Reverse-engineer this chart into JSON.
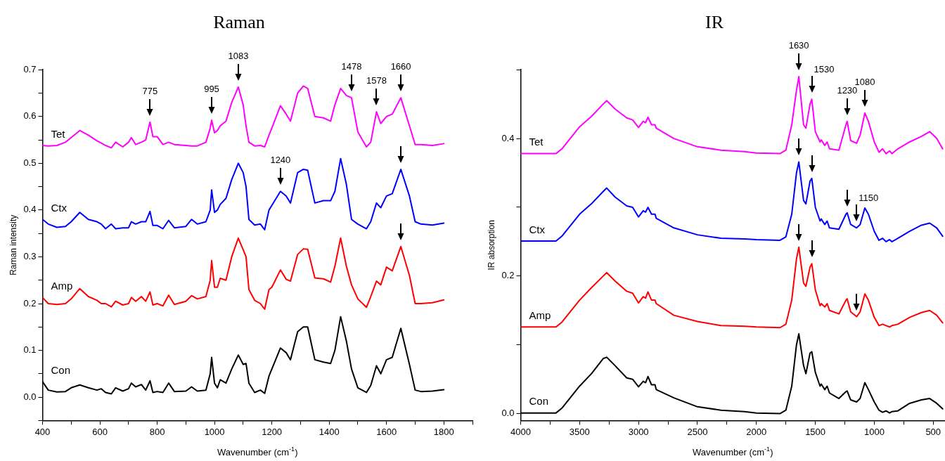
{
  "chart_data": [
    {
      "type": "line",
      "title": "Raman",
      "xlabel": "Wavenumber (cm$^{-1}$)",
      "ylabel": "Raman intensity",
      "xlim": [
        400,
        1900
      ],
      "ylim": [
        -0.05,
        0.7
      ],
      "xticks": [
        400,
        {
          "value": 500,
          "label": null
        },
        600,
        {
          "value": 700,
          "label": null
        },
        800,
        {
          "value": 900,
          "label": null
        },
        1000,
        {
          "value": 1100,
          "label": null
        },
        1200,
        {
          "value": 1300,
          "label": null
        },
        1400,
        {
          "value": 1500,
          "label": null
        },
        1600,
        {
          "value": 1700,
          "label": null
        },
        1800,
        {
          "value": 1900,
          "label": null
        }
      ],
      "yticks": [
        {
          "value": -0.05,
          "label": null
        },
        {
          "value": 0,
          "label": "0.0"
        },
        {
          "value": 0.05,
          "label": null
        },
        0.1,
        {
          "value": 0.15,
          "label": null
        },
        0.2,
        {
          "value": 0.25,
          "label": null
        },
        0.3,
        {
          "value": 0.35,
          "label": null
        },
        0.4,
        {
          "value": 0.45,
          "label": null
        },
        0.5,
        {
          "value": 0.55,
          "label": null
        },
        0.6,
        {
          "value": 0.65,
          "label": null
        },
        0.7
      ],
      "marker": "none",
      "line_style": "solid",
      "x": [
        400,
        420,
        450,
        480,
        500,
        530,
        560,
        590,
        605,
        620,
        640,
        655,
        680,
        700,
        710,
        725,
        745,
        760,
        775,
        785,
        800,
        820,
        840,
        860,
        900,
        920,
        940,
        970,
        985,
        990,
        1000,
        1010,
        1020,
        1040,
        1060,
        1083,
        1100,
        1110,
        1120,
        1140,
        1160,
        1175,
        1190,
        1200,
        1230,
        1250,
        1265,
        1290,
        1310,
        1325,
        1350,
        1380,
        1405,
        1420,
        1440,
        1460,
        1478,
        1500,
        1530,
        1545,
        1565,
        1580,
        1600,
        1620,
        1650,
        1680,
        1700,
        1720,
        1760,
        1800
      ],
      "series": [
        {
          "name": "Tet",
          "color": "#ff00ff",
          "values": [
            0.538,
            0.537,
            0.538,
            0.545,
            0.555,
            0.57,
            0.56,
            0.548,
            0.543,
            0.538,
            0.533,
            0.545,
            0.535,
            0.545,
            0.555,
            0.54,
            0.545,
            0.55,
            0.588,
            0.557,
            0.557,
            0.54,
            0.545,
            0.54,
            0.538,
            0.537,
            0.537,
            0.545,
            0.575,
            0.592,
            0.565,
            0.57,
            0.58,
            0.59,
            0.63,
            0.663,
            0.625,
            0.58,
            0.545,
            0.537,
            0.538,
            0.535,
            0.56,
            0.575,
            0.623,
            0.605,
            0.59,
            0.65,
            0.665,
            0.66,
            0.6,
            0.597,
            0.59,
            0.625,
            0.66,
            0.645,
            0.64,
            0.567,
            0.535,
            0.545,
            0.61,
            0.585,
            0.6,
            0.605,
            0.64,
            0.58,
            0.54,
            0.54,
            0.538,
            0.542
          ]
        },
        {
          "name": "Ctx",
          "color": "#0000ff",
          "values": [
            0.38,
            0.37,
            0.363,
            0.365,
            0.375,
            0.395,
            0.38,
            0.375,
            0.37,
            0.36,
            0.37,
            0.36,
            0.362,
            0.362,
            0.375,
            0.37,
            0.375,
            0.375,
            0.397,
            0.367,
            0.367,
            0.36,
            0.378,
            0.362,
            0.365,
            0.38,
            0.37,
            0.375,
            0.4,
            0.443,
            0.395,
            0.4,
            0.412,
            0.425,
            0.465,
            0.5,
            0.48,
            0.45,
            0.38,
            0.368,
            0.37,
            0.358,
            0.4,
            0.41,
            0.44,
            0.43,
            0.415,
            0.48,
            0.487,
            0.485,
            0.415,
            0.42,
            0.42,
            0.44,
            0.51,
            0.455,
            0.38,
            0.37,
            0.36,
            0.375,
            0.415,
            0.405,
            0.43,
            0.435,
            0.487,
            0.43,
            0.375,
            0.37,
            0.368,
            0.372
          ]
        },
        {
          "name": "Amp",
          "color": "#ff0000",
          "values": [
            0.213,
            0.2,
            0.198,
            0.2,
            0.21,
            0.232,
            0.215,
            0.207,
            0.2,
            0.2,
            0.193,
            0.205,
            0.197,
            0.2,
            0.213,
            0.205,
            0.215,
            0.205,
            0.225,
            0.197,
            0.2,
            0.195,
            0.218,
            0.198,
            0.205,
            0.217,
            0.21,
            0.215,
            0.25,
            0.292,
            0.235,
            0.235,
            0.254,
            0.25,
            0.3,
            0.34,
            0.315,
            0.3,
            0.23,
            0.207,
            0.2,
            0.188,
            0.23,
            0.235,
            0.272,
            0.252,
            0.248,
            0.305,
            0.317,
            0.316,
            0.255,
            0.253,
            0.246,
            0.28,
            0.34,
            0.28,
            0.24,
            0.21,
            0.192,
            0.215,
            0.248,
            0.24,
            0.278,
            0.27,
            0.322,
            0.26,
            0.2,
            0.2,
            0.202,
            0.208
          ]
        },
        {
          "name": "Con",
          "color": "#000000",
          "values": [
            0.033,
            0.015,
            0.011,
            0.012,
            0.02,
            0.026,
            0.02,
            0.015,
            0.018,
            0.01,
            0.007,
            0.02,
            0.013,
            0.018,
            0.03,
            0.022,
            0.027,
            0.015,
            0.035,
            0.01,
            0.012,
            0.01,
            0.03,
            0.012,
            0.013,
            0.022,
            0.013,
            0.015,
            0.05,
            0.085,
            0.03,
            0.02,
            0.037,
            0.03,
            0.06,
            0.09,
            0.07,
            0.072,
            0.03,
            0.01,
            0.015,
            0.008,
            0.045,
            0.06,
            0.105,
            0.095,
            0.08,
            0.14,
            0.15,
            0.15,
            0.08,
            0.075,
            0.072,
            0.1,
            0.172,
            0.12,
            0.06,
            0.02,
            0.01,
            0.025,
            0.067,
            0.05,
            0.08,
            0.085,
            0.147,
            0.07,
            0.015,
            0.012,
            0.013,
            0.016
          ]
        }
      ],
      "annotations": [
        {
          "text": "775",
          "x": 775,
          "y": 0.588
        },
        {
          "text": "995",
          "x": 990,
          "y": 0.592
        },
        {
          "text": "1083",
          "x": 1083,
          "y": 0.663
        },
        {
          "text": "1478",
          "x": 1478,
          "y": 0.64
        },
        {
          "text": "1578",
          "x": 1565,
          "y": 0.61
        },
        {
          "text": "1660",
          "x": 1650,
          "y": 0.64
        },
        {
          "text": "1240",
          "x": 1230,
          "y": 0.44
        }
      ]
    },
    {
      "type": "line",
      "title": "IR",
      "xlabel": "Wavenumber (cm$^{-1}$)",
      "ylabel": "IR absorption",
      "xlim": [
        4000,
        400
      ],
      "ylim": [
        -0.01,
        0.5
      ],
      "xticks": [
        4000,
        {
          "value": 3750,
          "label": null
        },
        3500,
        {
          "value": 3250,
          "label": null
        },
        3000,
        {
          "value": 2750,
          "label": null
        },
        2500,
        {
          "value": 2250,
          "label": null
        },
        2000,
        {
          "value": 1750,
          "label": null
        },
        1500,
        {
          "value": 1250,
          "label": null
        },
        1000,
        {
          "value": 750,
          "label": null
        },
        500
      ],
      "yticks": [
        {
          "value": 0,
          "label": "0.0"
        },
        {
          "value": 0.1,
          "label": null
        },
        0.2,
        {
          "value": 0.3,
          "label": null
        },
        0.4,
        {
          "value": 0.5,
          "label": null
        }
      ],
      "marker": "none",
      "line_style": "solid",
      "x": [
        4000,
        3700,
        3650,
        3500,
        3400,
        3300,
        3270,
        3200,
        3100,
        3050,
        3000,
        2960,
        2940,
        2920,
        2890,
        2860,
        2850,
        2700,
        2500,
        2300,
        2100,
        2000,
        1800,
        1750,
        1700,
        1660,
        1640,
        1600,
        1580,
        1545,
        1530,
        1500,
        1460,
        1450,
        1420,
        1400,
        1380,
        1300,
        1240,
        1230,
        1200,
        1150,
        1120,
        1080,
        1050,
        1000,
        960,
        930,
        900,
        870,
        850,
        800,
        700,
        600,
        530,
        470,
        420
      ],
      "series": [
        {
          "name": "Tet",
          "color": "#ff00ff",
          "values": [
            0.378,
            0.378,
            0.385,
            0.417,
            0.432,
            0.45,
            0.455,
            0.443,
            0.43,
            0.427,
            0.416,
            0.425,
            0.423,
            0.431,
            0.42,
            0.42,
            0.415,
            0.4,
            0.388,
            0.383,
            0.381,
            0.379,
            0.378,
            0.383,
            0.42,
            0.47,
            0.49,
            0.42,
            0.415,
            0.45,
            0.457,
            0.41,
            0.395,
            0.398,
            0.39,
            0.395,
            0.385,
            0.383,
            0.42,
            0.425,
            0.397,
            0.393,
            0.405,
            0.437,
            0.425,
            0.395,
            0.38,
            0.385,
            0.378,
            0.382,
            0.378,
            0.385,
            0.395,
            0.403,
            0.41,
            0.4,
            0.385
          ]
        },
        {
          "name": "Ctx",
          "color": "#0000ff",
          "values": [
            0.251,
            0.251,
            0.258,
            0.29,
            0.305,
            0.323,
            0.328,
            0.315,
            0.302,
            0.3,
            0.286,
            0.295,
            0.293,
            0.3,
            0.29,
            0.29,
            0.284,
            0.27,
            0.26,
            0.255,
            0.254,
            0.253,
            0.252,
            0.257,
            0.29,
            0.35,
            0.366,
            0.31,
            0.305,
            0.338,
            0.342,
            0.3,
            0.28,
            0.283,
            0.275,
            0.28,
            0.27,
            0.268,
            0.29,
            0.292,
            0.275,
            0.27,
            0.275,
            0.299,
            0.29,
            0.265,
            0.252,
            0.255,
            0.25,
            0.253,
            0.25,
            0.255,
            0.265,
            0.274,
            0.277,
            0.27,
            0.258
          ]
        },
        {
          "name": "Amp",
          "color": "#ff0000",
          "values": [
            0.126,
            0.126,
            0.133,
            0.165,
            0.183,
            0.2,
            0.205,
            0.193,
            0.178,
            0.175,
            0.161,
            0.17,
            0.168,
            0.177,
            0.165,
            0.165,
            0.16,
            0.143,
            0.134,
            0.128,
            0.127,
            0.126,
            0.125,
            0.13,
            0.165,
            0.225,
            0.242,
            0.19,
            0.185,
            0.213,
            0.218,
            0.18,
            0.157,
            0.16,
            0.155,
            0.16,
            0.15,
            0.145,
            0.165,
            0.167,
            0.148,
            0.141,
            0.148,
            0.174,
            0.165,
            0.14,
            0.128,
            0.13,
            0.128,
            0.126,
            0.128,
            0.13,
            0.14,
            0.147,
            0.15,
            0.143,
            0.132
          ]
        },
        {
          "name": "Con",
          "color": "#000000",
          "values": [
            0.001,
            0.001,
            0.008,
            0.04,
            0.058,
            0.08,
            0.082,
            0.07,
            0.052,
            0.05,
            0.039,
            0.047,
            0.045,
            0.054,
            0.042,
            0.042,
            0.035,
            0.023,
            0.01,
            0.005,
            0.003,
            0.001,
            0.0,
            0.005,
            0.04,
            0.1,
            0.116,
            0.07,
            0.058,
            0.088,
            0.09,
            0.06,
            0.04,
            0.043,
            0.035,
            0.04,
            0.03,
            0.022,
            0.032,
            0.033,
            0.02,
            0.017,
            0.022,
            0.045,
            0.035,
            0.017,
            0.005,
            0.002,
            0.004,
            0.001,
            0.003,
            0.004,
            0.015,
            0.02,
            0.022,
            0.015,
            0.007
          ]
        }
      ],
      "annotations": [
        {
          "text": "1630",
          "x": 1640,
          "y": 0.49
        },
        {
          "text": "1530",
          "x": 1530,
          "y": 0.457
        },
        {
          "text": "1230",
          "x": 1230,
          "y": 0.425
        },
        {
          "text": "1080",
          "x": 1080,
          "y": 0.437
        },
        {
          "text": "1150",
          "x": 1150,
          "y": 0.27
        }
      ]
    }
  ]
}
